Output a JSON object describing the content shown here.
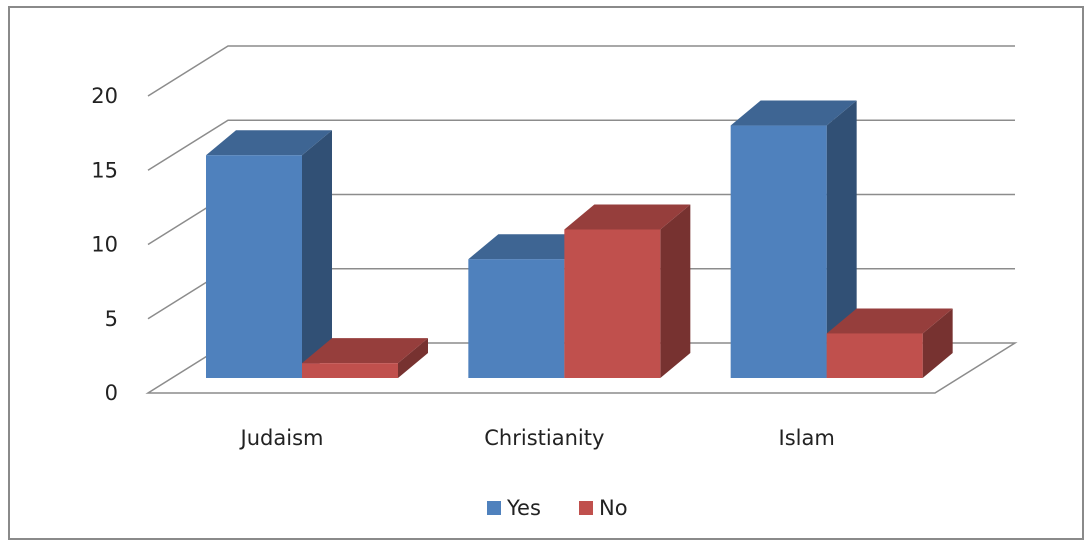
{
  "chart_data": {
    "type": "bar",
    "style": "3d-clustered-column",
    "categories": [
      "Judaism",
      "Christianity",
      "Islam"
    ],
    "series": [
      {
        "name": "Yes",
        "values": [
          15,
          8,
          17
        ],
        "color": "#4f81bd"
      },
      {
        "name": "No",
        "values": [
          1,
          10,
          3
        ],
        "color": "#c0504d"
      }
    ],
    "yticks": [
      "0",
      "5",
      "10",
      "15",
      "20"
    ],
    "ylim": [
      0,
      20
    ],
    "grid": true,
    "legend": "bottom"
  }
}
